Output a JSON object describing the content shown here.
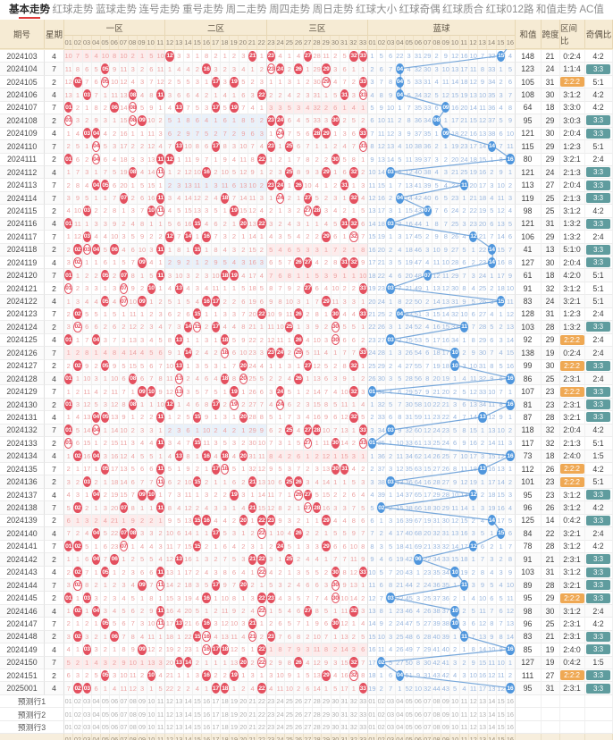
{
  "tabs": [
    {
      "label": "基本走势",
      "active": true
    },
    {
      "label": "红球走势",
      "active": false
    },
    {
      "label": "蓝球走势",
      "active": false
    },
    {
      "label": "连号走势",
      "active": false
    },
    {
      "label": "重号走势",
      "active": false
    },
    {
      "label": "周二走势",
      "active": false
    },
    {
      "label": "周四走势",
      "active": false
    },
    {
      "label": "周日走势",
      "active": false
    },
    {
      "label": "红球大小",
      "active": false
    },
    {
      "label": "红球奇偶",
      "active": false
    },
    {
      "label": "红球质合",
      "active": false
    },
    {
      "label": "红球012路",
      "active": false
    },
    {
      "label": "和值走势",
      "active": false
    },
    {
      "label": "AC值",
      "active": false
    }
  ],
  "header": {
    "period": "期号",
    "week": "星期",
    "zone1": "一区",
    "zone2": "二区",
    "zone3": "三区",
    "blue": "蓝球",
    "sum": "和值",
    "span": "跨度",
    "zone_ratio": "区间比",
    "parity_ratio": "奇偶比"
  },
  "red_cols": [
    "01",
    "02",
    "03",
    "04",
    "05",
    "06",
    "07",
    "08",
    "09",
    "10",
    "11",
    "12",
    "13",
    "14",
    "15",
    "16",
    "17",
    "18",
    "19",
    "20",
    "21",
    "22",
    "23",
    "24",
    "25",
    "26",
    "27",
    "28",
    "29",
    "30",
    "31",
    "32",
    "33"
  ],
  "blue_cols": [
    "01",
    "02",
    "03",
    "04",
    "05",
    "06",
    "07",
    "08",
    "09",
    "10",
    "11",
    "12",
    "13",
    "14",
    "15",
    "16"
  ],
  "seed_miss": {
    "red": {
      "1": 10,
      "2": 7,
      "3": 5,
      "4": 4,
      "5": 10,
      "6": 8,
      "7": 10,
      "8": 2,
      "9": 1,
      "10": 5,
      "11": 10,
      "13": 3,
      "14": 3,
      "15": 1,
      "16": 8,
      "17": 2,
      "18": 1,
      "19": 2,
      "20": 3,
      "22": 1,
      "24": 4,
      "25": 1,
      "26": 4,
      "28": 28,
      "29": 11,
      "30": 2,
      "31": 5
    },
    "blue": {
      "1": 1,
      "2": 5,
      "3": 6,
      "4": 22,
      "5": 3,
      "6": 31,
      "7": 29,
      "8": 2,
      "9": 9,
      "10": 12,
      "11": 16,
      "12": 10,
      "13": 7,
      "14": 32,
      "16": 4
    }
  },
  "rows": [
    {
      "period": "2024103",
      "week": "4",
      "reds": [
        12,
        21,
        23,
        27,
        32,
        33
      ],
      "blue": 15,
      "sum": 148,
      "span": 21,
      "zone_ratio": "0:2:4",
      "parity": "4:2"
    },
    {
      "period": "2024104",
      "week": "7",
      "reds": [
        5,
        16,
        23,
        24,
        26,
        29
      ],
      "blue": 4,
      "sum": 123,
      "span": 24,
      "zone_ratio": "1:1:4",
      "parity": "3:3"
    },
    {
      "period": "2024105",
      "week": "2",
      "reds": [
        2,
        5,
        17,
        19,
        29,
        33
      ],
      "blue": 4,
      "sum": 105,
      "span": 31,
      "zone_ratio": "2:2:2",
      "parity": "5:1"
    },
    {
      "period": "2024106",
      "week": "4",
      "reds": [
        3,
        8,
        11,
        22,
        31,
        33
      ],
      "blue": 4,
      "sum": 108,
      "span": 30,
      "zone_ratio": "3:1:2",
      "parity": "4:2"
    },
    {
      "period": "2024107",
      "week": "7",
      "reds": [
        1,
        6,
        8,
        13,
        17,
        19
      ],
      "blue": 9,
      "sum": 64,
      "span": 18,
      "zone_ratio": "3:3:0",
      "parity": "4:2"
    },
    {
      "period": "2024108",
      "week": "2",
      "reds": [
        1,
        8,
        9,
        23,
        24,
        30
      ],
      "blue": 8,
      "sum": 95,
      "span": 29,
      "zone_ratio": "3:0:3",
      "parity": "3:3"
    },
    {
      "period": "2024109",
      "week": "4",
      "reds": [
        3,
        4,
        24,
        28,
        29,
        33
      ],
      "blue": 9,
      "sum": 121,
      "span": 30,
      "zone_ratio": "2:0:4",
      "parity": "3:3"
    },
    {
      "period": "2024110",
      "week": "7",
      "reds": [
        4,
        13,
        17,
        23,
        25,
        33
      ],
      "blue": 14,
      "sum": 115,
      "span": 29,
      "zone_ratio": "1:2:3",
      "parity": "5:1"
    },
    {
      "period": "2024111",
      "week": "2",
      "reds": [
        1,
        4,
        11,
        12,
        22,
        30
      ],
      "blue": 16,
      "sum": 80,
      "span": 29,
      "zone_ratio": "3:2:1",
      "parity": "2:4"
    },
    {
      "period": "2024112",
      "week": "4",
      "reds": [
        8,
        11,
        16,
        25,
        29,
        32
      ],
      "blue": 3,
      "sum": 121,
      "span": 24,
      "zone_ratio": "2:1:3",
      "parity": "3:3"
    },
    {
      "period": "2024113",
      "week": "7",
      "reds": [
        4,
        5,
        23,
        24,
        26,
        31
      ],
      "blue": 11,
      "sum": 113,
      "span": 27,
      "zone_ratio": "2:0:4",
      "parity": "3:3"
    },
    {
      "period": "2024114",
      "week": "7",
      "reds": [
        7,
        11,
        18,
        24,
        27,
        32
      ],
      "blue": 4,
      "sum": 119,
      "span": 25,
      "zone_ratio": "2:1:3",
      "parity": "3:3"
    },
    {
      "period": "2024115",
      "week": "2",
      "reds": [
        3,
        10,
        11,
        19,
        27,
        28
      ],
      "blue": 7,
      "sum": 98,
      "span": 25,
      "zone_ratio": "3:1:2",
      "parity": "4:2"
    },
    {
      "period": "2024116",
      "week": "4",
      "reds": [
        1,
        15,
        20,
        22,
        31,
        32
      ],
      "blue": 3,
      "sum": 121,
      "span": 31,
      "zone_ratio": "1:3:2",
      "parity": "3:3"
    },
    {
      "period": "2024117",
      "week": "7",
      "reds": [
        3,
        12,
        14,
        16,
        29,
        32
      ],
      "blue": 12,
      "sum": 106,
      "span": 29,
      "zone_ratio": "1:3:2",
      "parity": "2:4"
    },
    {
      "period": "2024118",
      "week": "2",
      "reds": [
        2,
        3,
        4,
        6,
        11,
        15
      ],
      "blue": 14,
      "sum": 41,
      "span": 13,
      "zone_ratio": "5:1:0",
      "parity": "3:3"
    },
    {
      "period": "2024119",
      "week": "4",
      "reds": [
        2,
        9,
        26,
        27,
        31,
        32
      ],
      "blue": 14,
      "sum": 127,
      "span": 30,
      "zone_ratio": "2:0:4",
      "parity": "3:3"
    },
    {
      "period": "2024120",
      "week": "7",
      "reds": [
        1,
        5,
        7,
        11,
        18,
        19
      ],
      "blue": 7,
      "sum": 61,
      "span": 18,
      "zone_ratio": "4:2:0",
      "parity": "5:1"
    },
    {
      "period": "2024121",
      "week": "2",
      "reds": [
        1,
        7,
        10,
        13,
        27,
        33
      ],
      "blue": 3,
      "sum": 91,
      "span": 32,
      "zone_ratio": "3:1:2",
      "parity": "5:1"
    },
    {
      "period": "2024122",
      "week": "4",
      "reds": [
        5,
        7,
        9,
        16,
        17,
        29
      ],
      "blue": 15,
      "sum": 83,
      "span": 24,
      "zone_ratio": "3:2:1",
      "parity": "5:1"
    },
    {
      "period": "2024123",
      "week": "7",
      "reds": [
        2,
        15,
        22,
        26,
        30,
        33
      ],
      "blue": 4,
      "sum": 128,
      "span": 31,
      "zone_ratio": "1:2:3",
      "parity": "2:4"
    },
    {
      "period": "2024124",
      "week": "2",
      "reds": [
        2,
        14,
        15,
        17,
        25,
        30
      ],
      "blue": 11,
      "sum": 103,
      "span": 28,
      "zone_ratio": "1:3:2",
      "parity": "3:3"
    },
    {
      "period": "2024125",
      "week": "4",
      "reds": [
        1,
        4,
        13,
        18,
        26,
        30
      ],
      "blue": 3,
      "sum": 92,
      "span": 29,
      "zone_ratio": "2:2:2",
      "parity": "2:4"
    },
    {
      "period": "2024126",
      "week": "7",
      "reds": [
        14,
        18,
        23,
        24,
        26,
        33
      ],
      "blue": 10,
      "sum": 138,
      "span": 19,
      "zone_ratio": "0:2:4",
      "parity": "2:4"
    },
    {
      "period": "2024127",
      "week": "2",
      "reds": [
        2,
        5,
        13,
        20,
        27,
        32
      ],
      "blue": 10,
      "sum": 99,
      "span": 30,
      "zone_ratio": "2:2:2",
      "parity": "3:3"
    },
    {
      "period": "2024128",
      "week": "4",
      "reds": [
        1,
        8,
        13,
        18,
        20,
        26
      ],
      "blue": 16,
      "sum": 86,
      "span": 25,
      "zone_ratio": "2:3:1",
      "parity": "2:4"
    },
    {
      "period": "2024129",
      "week": "7",
      "reds": [
        9,
        10,
        13,
        19,
        24,
        32
      ],
      "blue": 1,
      "sum": 107,
      "span": 23,
      "zone_ratio": "2:2:2",
      "parity": "3:3"
    },
    {
      "period": "2024130",
      "week": "2",
      "reds": [
        1,
        8,
        12,
        17,
        19,
        24
      ],
      "blue": 16,
      "sum": 81,
      "span": 23,
      "zone_ratio": "2:3:1",
      "parity": "3:3"
    },
    {
      "period": "2024131",
      "week": "4",
      "reds": [
        4,
        5,
        11,
        15,
        20,
        32
      ],
      "blue": 13,
      "sum": 87,
      "span": 28,
      "zone_ratio": "3:2:1",
      "parity": "3:3"
    },
    {
      "period": "2024132",
      "week": "7",
      "reds": [
        1,
        4,
        25,
        27,
        28,
        33
      ],
      "blue": 3,
      "sum": 118,
      "span": 32,
      "zone_ratio": "2:0:4",
      "parity": "4:2"
    },
    {
      "period": "2024133",
      "week": "2",
      "reds": [
        1,
        11,
        15,
        27,
        30,
        33
      ],
      "blue": 1,
      "sum": 117,
      "span": 32,
      "zone_ratio": "2:1:3",
      "parity": "5:1"
    },
    {
      "period": "2024134",
      "week": "4",
      "reds": [
        2,
        4,
        13,
        16,
        18,
        20
      ],
      "blue": 16,
      "sum": 73,
      "span": 18,
      "zone_ratio": "2:4:0",
      "parity": "1:5"
    },
    {
      "period": "2024135",
      "week": "7",
      "reds": [
        5,
        11,
        17,
        18,
        30,
        31
      ],
      "blue": 13,
      "sum": 112,
      "span": 26,
      "zone_ratio": "2:2:2",
      "parity": "4:2"
    },
    {
      "period": "2024136",
      "week": "2",
      "reds": [
        3,
        11,
        15,
        21,
        25,
        26
      ],
      "blue": 3,
      "sum": 101,
      "span": 23,
      "zone_ratio": "2:2:2",
      "parity": "5:1"
    },
    {
      "period": "2024137",
      "week": "4",
      "reds": [
        4,
        9,
        10,
        19,
        26,
        27
      ],
      "blue": 12,
      "sum": 95,
      "span": 23,
      "zone_ratio": "3:1:2",
      "parity": "3:3"
    },
    {
      "period": "2024138",
      "week": "7",
      "reds": [
        2,
        7,
        11,
        21,
        27,
        28
      ],
      "blue": 2,
      "sum": 96,
      "span": 26,
      "zone_ratio": "3:1:2",
      "parity": "4:2"
    },
    {
      "period": "2024139",
      "week": "2",
      "reds": [
        15,
        16,
        20,
        22,
        23,
        29
      ],
      "blue": 14,
      "sum": 125,
      "span": 14,
      "zone_ratio": "0:4:2",
      "parity": "3:3"
    },
    {
      "period": "2024140",
      "week": "4",
      "reds": [
        4,
        7,
        8,
        17,
        22,
        26
      ],
      "blue": 15,
      "sum": 84,
      "span": 22,
      "zone_ratio": "3:2:1",
      "parity": "2:4"
    },
    {
      "period": "2024141",
      "week": "7",
      "reds": [
        1,
        2,
        7,
        15,
        24,
        29
      ],
      "blue": 12,
      "sum": 78,
      "span": 28,
      "zone_ratio": "3:1:2",
      "parity": "4:2"
    },
    {
      "period": "2024142",
      "week": "2",
      "reds": [
        4,
        6,
        13,
        21,
        22,
        25
      ],
      "blue": 6,
      "sum": 91,
      "span": 21,
      "zone_ratio": "2:3:1",
      "parity": "3:3"
    },
    {
      "period": "2024143",
      "week": "4",
      "reds": [
        2,
        5,
        11,
        22,
        30,
        33
      ],
      "blue": 10,
      "sum": 103,
      "span": 31,
      "zone_ratio": "3:1:2",
      "parity": "3:3"
    },
    {
      "period": "2024144",
      "week": "7",
      "reds": [
        2,
        9,
        11,
        17,
        20,
        30
      ],
      "blue": 11,
      "sum": 89,
      "span": 28,
      "zone_ratio": "3:2:1",
      "parity": "3:3"
    },
    {
      "period": "2024145",
      "week": "2",
      "reds": [
        1,
        3,
        16,
        22,
        23,
        30
      ],
      "blue": 3,
      "sum": 95,
      "span": 29,
      "zone_ratio": "2:2:2",
      "parity": "3:3"
    },
    {
      "period": "2024146",
      "week": "4",
      "reds": [
        2,
        4,
        11,
        22,
        27,
        32
      ],
      "blue": 10,
      "sum": 98,
      "span": 30,
      "zone_ratio": "3:1:2",
      "parity": "2:4"
    },
    {
      "period": "2024147",
      "week": "7",
      "reds": [
        5,
        11,
        13,
        16,
        21,
        30
      ],
      "blue": 10,
      "sum": 96,
      "span": 25,
      "zone_ratio": "2:3:1",
      "parity": "4:2"
    },
    {
      "period": "2024148",
      "week": "2",
      "reds": [
        2,
        6,
        15,
        16,
        21,
        23
      ],
      "blue": 11,
      "sum": 83,
      "span": 21,
      "zone_ratio": "2:3:1",
      "parity": "3:3"
    },
    {
      "period": "2024149",
      "week": "4",
      "reds": [
        3,
        9,
        16,
        17,
        18,
        22
      ],
      "blue": 16,
      "sum": 85,
      "span": 19,
      "zone_ratio": "2:4:0",
      "parity": "3:3"
    },
    {
      "period": "2024150",
      "week": "7",
      "reds": [
        13,
        14,
        20,
        22,
        26,
        32
      ],
      "blue": 2,
      "sum": 127,
      "span": 19,
      "zone_ratio": "0:4:2",
      "parity": "1:5"
    },
    {
      "period": "2024151",
      "week": "2",
      "reds": [
        5,
        10,
        16,
        19,
        29,
        32
      ],
      "blue": 4,
      "sum": 111,
      "span": 27,
      "zone_ratio": "2:2:2",
      "parity": "3:3"
    },
    {
      "period": "2025001",
      "week": "4",
      "reds": [
        2,
        3,
        17,
        18,
        22,
        33
      ],
      "blue": 16,
      "sum": 95,
      "span": 31,
      "zone_ratio": "2:3:1",
      "parity": "3:3"
    }
  ],
  "footer_rows": [
    {
      "label": "预测行1"
    },
    {
      "label": "预测行2"
    },
    {
      "label": "预测行3"
    }
  ],
  "highlight_rules": {
    "zone_ratio_highlight": "2:2:2",
    "parity_highlight": "3:3"
  },
  "colors": {
    "accent_red": "#e03c3c",
    "red_ball": "#e4505f",
    "blue_ball": "#4f96dd",
    "trend_line": "#76a7db",
    "zone_ratio_badge": "#efa853",
    "parity_badge": "#5f9c9e",
    "header_bg": "#f6ebd4",
    "red_miss_text": "#eca3a3",
    "blue_miss_text": "#9ab7de",
    "zone1_tint": "#fdecec",
    "zone2_tint": "#e9f1fa"
  }
}
